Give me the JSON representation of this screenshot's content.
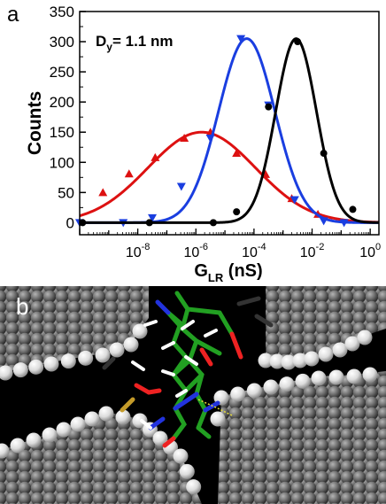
{
  "figure": {
    "panel_a_label": "a",
    "panel_b_label": "b",
    "annotation_main": "D",
    "annotation_sub": "y",
    "annotation_rest": "= 1.1 nm"
  },
  "chart_data": {
    "type": "line",
    "title": "",
    "xlabel_main": "G",
    "xlabel_sub": "LR",
    "xlabel_rest": " (nS)",
    "ylabel": "Counts",
    "xscale": "log",
    "xlim_exponent": [
      -10,
      0.3
    ],
    "ylim": [
      -20,
      350
    ],
    "yticks": [
      0,
      50,
      100,
      150,
      200,
      250,
      300,
      350
    ],
    "xtick_exponents": [
      -8,
      -6,
      -4,
      -2,
      0
    ],
    "grid": false,
    "legend": "none",
    "series": [
      {
        "color": "#dd1111",
        "marker": "triangle-up",
        "curve": {
          "peak_exponent": -5.8,
          "amplitude": 150,
          "sigma_decades": 1.85
        },
        "points": [
          {
            "exp": -9.2,
            "y": 50
          },
          {
            "exp": -8.3,
            "y": 81
          },
          {
            "exp": -7.4,
            "y": 108
          },
          {
            "exp": -6.4,
            "y": 140
          },
          {
            "exp": -5.5,
            "y": 150
          },
          {
            "exp": -4.6,
            "y": 115
          },
          {
            "exp": -3.6,
            "y": 80
          },
          {
            "exp": -2.7,
            "y": 40
          },
          {
            "exp": -1.8,
            "y": 14
          }
        ]
      },
      {
        "color": "#1a3ee0",
        "marker": "triangle-down",
        "curve": {
          "peak_exponent": -4.25,
          "amplitude": 305,
          "sigma_decades": 0.97
        },
        "points": [
          {
            "exp": -10.0,
            "y": 0
          },
          {
            "exp": -8.5,
            "y": 0
          },
          {
            "exp": -7.5,
            "y": 8
          },
          {
            "exp": -6.5,
            "y": 60
          },
          {
            "exp": -5.5,
            "y": 140
          },
          {
            "exp": -4.45,
            "y": 305
          },
          {
            "exp": -3.5,
            "y": 195
          },
          {
            "exp": -2.6,
            "y": 38
          },
          {
            "exp": -1.6,
            "y": 3
          },
          {
            "exp": -0.9,
            "y": 0
          }
        ]
      },
      {
        "color": "#000000",
        "marker": "circle",
        "curve": {
          "peak_exponent": -2.55,
          "amplitude": 305,
          "sigma_decades": 0.7
        },
        "points": [
          {
            "exp": -9.9,
            "y": 0
          },
          {
            "exp": -7.6,
            "y": 0
          },
          {
            "exp": -5.4,
            "y": 0
          },
          {
            "exp": -4.6,
            "y": 18
          },
          {
            "exp": -3.5,
            "y": 192
          },
          {
            "exp": -2.5,
            "y": 300
          },
          {
            "exp": -1.6,
            "y": 115
          },
          {
            "exp": -0.6,
            "y": 22
          }
        ]
      }
    ]
  }
}
